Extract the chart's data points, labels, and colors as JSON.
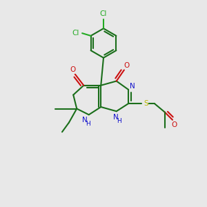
{
  "bg_color": "#e8e8e8",
  "gc": "#1a6e1a",
  "nc": "#1010cc",
  "oc": "#cc1010",
  "sc": "#b8b800",
  "clc": "#22aa22",
  "hc": "#1010cc",
  "bw": 1.5,
  "figsize": [
    3.0,
    3.0
  ],
  "dpi": 100,
  "xlim": [
    -1,
    11
  ],
  "ylim": [
    -0.5,
    11.5
  ]
}
